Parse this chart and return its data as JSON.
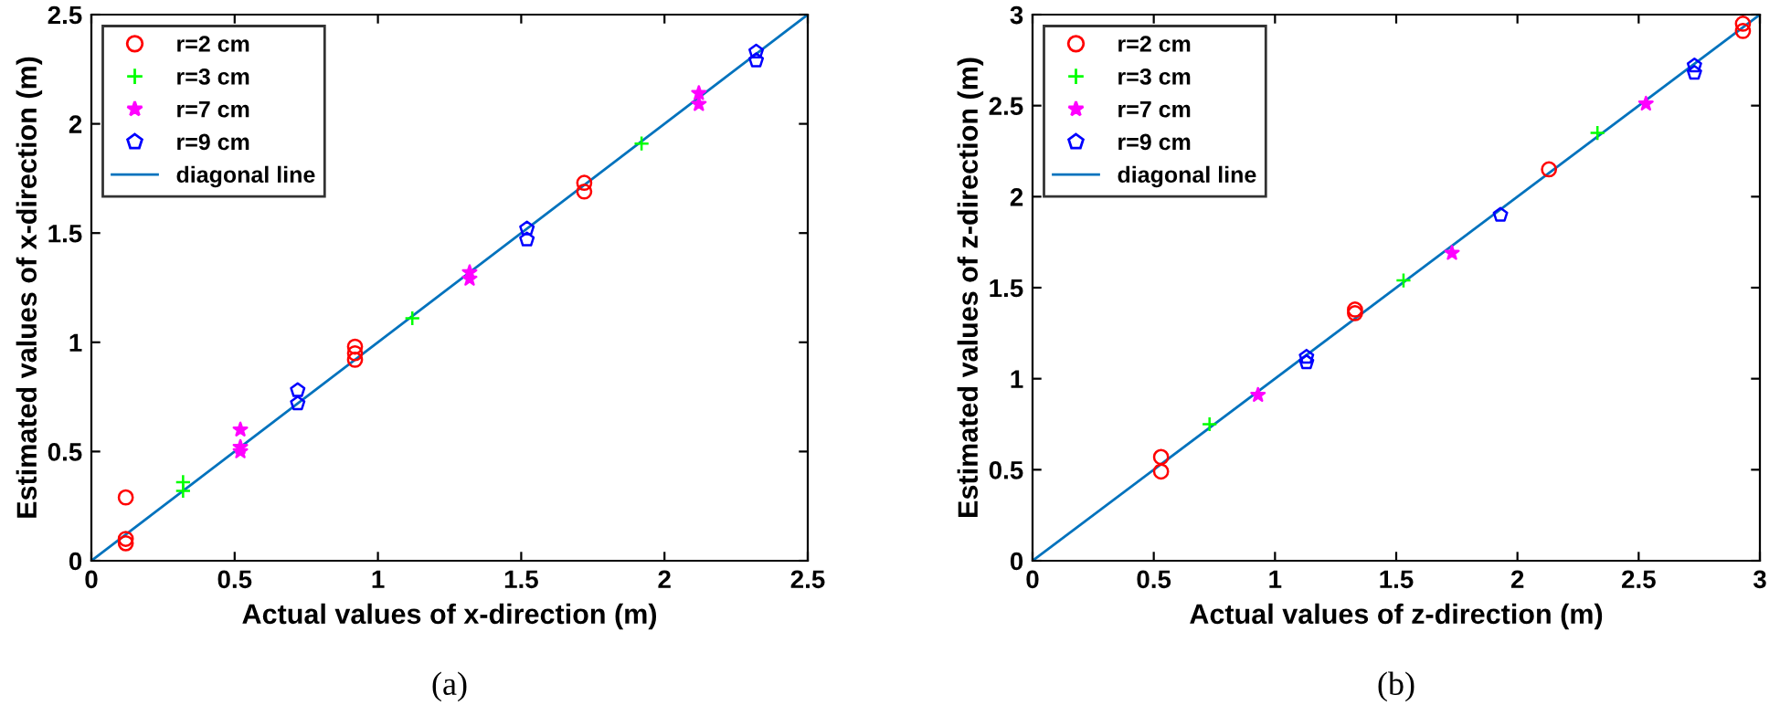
{
  "chart_data": [
    {
      "type": "scatter",
      "xlabel": "Actual values of x-direction (m)",
      "ylabel": "Estimated values of x-direction (m)",
      "annotations": [
        "(a)"
      ],
      "xlim": [
        0,
        2.5
      ],
      "ylim": [
        0,
        2.5
      ],
      "xticks": [
        0,
        0.5,
        1,
        1.5,
        2,
        2.5
      ],
      "yticks": [
        0,
        0.5,
        1,
        1.5,
        2,
        2.5
      ],
      "grid": false,
      "legend": "top left",
      "series": [
        {
          "name": "r=2 cm",
          "color": "#ff0000",
          "marker": "circle",
          "x": [
            0.12,
            0.12,
            0.12,
            0.92,
            0.92,
            0.92,
            1.72,
            1.72
          ],
          "values": [
            0.29,
            0.1,
            0.08,
            0.98,
            0.95,
            0.92,
            1.73,
            1.69
          ]
        },
        {
          "name": "r=3 cm",
          "color": "#00ff00",
          "marker": "cross",
          "x": [
            0.32,
            0.32,
            1.12,
            1.92
          ],
          "values": [
            0.36,
            0.32,
            1.11,
            1.91
          ]
        },
        {
          "name": "r=7 cm",
          "color": "#ff00ff",
          "marker": "asterisk",
          "x": [
            0.52,
            0.52,
            0.52,
            1.32,
            1.32,
            2.12,
            2.12
          ],
          "values": [
            0.6,
            0.52,
            0.5,
            1.32,
            1.29,
            2.14,
            2.09
          ]
        },
        {
          "name": "r=9 cm",
          "color": "#0000ff",
          "marker": "star",
          "x": [
            0.72,
            0.72,
            1.52,
            1.52,
            2.32,
            2.32
          ],
          "values": [
            0.78,
            0.72,
            1.52,
            1.47,
            2.33,
            2.29
          ]
        },
        {
          "name": "diagonal line",
          "type": "line",
          "color": "#0072bd",
          "marker": "none",
          "x": [
            0,
            2.5
          ],
          "values": [
            0,
            2.5
          ]
        }
      ]
    },
    {
      "type": "scatter",
      "xlabel": "Actual values of z-direction (m)",
      "ylabel": "Estimated values of z-direction (m)",
      "annotations": [
        "(b)"
      ],
      "xlim": [
        0,
        3
      ],
      "ylim": [
        0,
        3
      ],
      "xticks": [
        0,
        0.5,
        1,
        1.5,
        2,
        2.5,
        3
      ],
      "yticks": [
        0,
        0.5,
        1,
        1.5,
        2,
        2.5,
        3
      ],
      "grid": false,
      "legend": "top left",
      "series": [
        {
          "name": "r=2 cm",
          "color": "#ff0000",
          "marker": "circle",
          "x": [
            0.53,
            0.53,
            1.33,
            1.33,
            2.13,
            2.93,
            2.93
          ],
          "values": [
            0.57,
            0.49,
            1.38,
            1.36,
            2.15,
            2.95,
            2.91
          ]
        },
        {
          "name": "r=3 cm",
          "color": "#00ff00",
          "marker": "cross",
          "x": [
            0.73,
            1.53,
            2.33
          ],
          "values": [
            0.75,
            1.54,
            2.35
          ]
        },
        {
          "name": "r=7 cm",
          "color": "#ff00ff",
          "marker": "asterisk",
          "x": [
            0.93,
            1.73,
            2.53
          ],
          "values": [
            0.91,
            1.69,
            2.51
          ]
        },
        {
          "name": "r=9 cm",
          "color": "#0000ff",
          "marker": "star",
          "x": [
            1.13,
            1.13,
            1.93,
            2.73,
            2.73
          ],
          "values": [
            1.12,
            1.09,
            1.9,
            2.72,
            2.68
          ]
        },
        {
          "name": "diagonal line",
          "type": "line",
          "color": "#0072bd",
          "marker": "none",
          "x": [
            0,
            3
          ],
          "values": [
            0,
            3
          ]
        }
      ]
    }
  ]
}
